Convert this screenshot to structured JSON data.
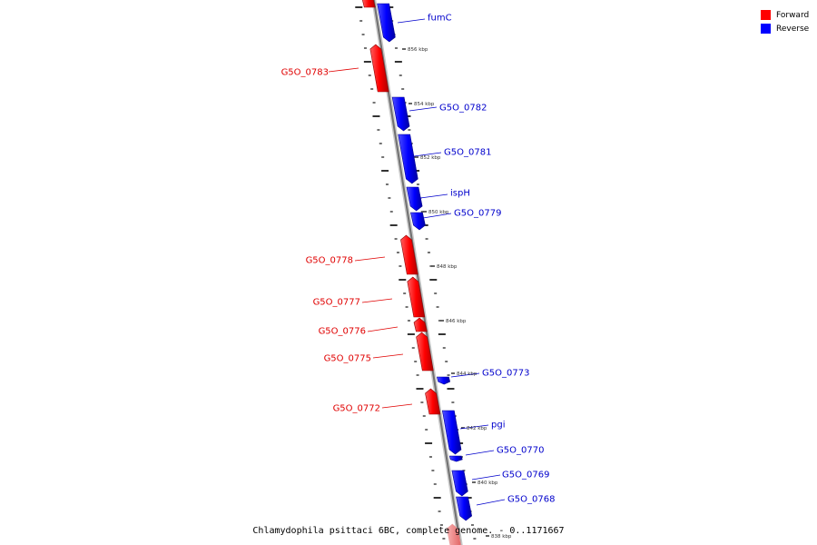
{
  "legend": {
    "forward": "Forward",
    "reverse": "Reverse",
    "forward_color": "#ff0000",
    "reverse_color": "#0000ff"
  },
  "caption": "Chlamydophila psittaci 6BC, complete genome. - 0..1171667",
  "genes": [
    {
      "name": "",
      "strand": "forward"
    },
    {
      "name": "fumC",
      "strand": "reverse"
    },
    {
      "name": "G5O_0783",
      "strand": "forward"
    },
    {
      "name": "G5O_0782",
      "strand": "reverse"
    },
    {
      "name": "G5O_0781",
      "strand": "reverse"
    },
    {
      "name": "ispH",
      "strand": "reverse"
    },
    {
      "name": "G5O_0779",
      "strand": "reverse"
    },
    {
      "name": "G5O_0778",
      "strand": "forward"
    },
    {
      "name": "G5O_0777",
      "strand": "forward"
    },
    {
      "name": "G5O_0776",
      "strand": "forward"
    },
    {
      "name": "G5O_0775",
      "strand": "forward"
    },
    {
      "name": "G5O_0773",
      "strand": "reverse"
    },
    {
      "name": "G5O_0772",
      "strand": "forward"
    },
    {
      "name": "pgi",
      "strand": "reverse"
    },
    {
      "name": "G5O_0770",
      "strand": "reverse"
    },
    {
      "name": "G5O_0769",
      "strand": "reverse"
    },
    {
      "name": "G5O_0768",
      "strand": "reverse"
    },
    {
      "name": "",
      "strand": "forward"
    }
  ],
  "scale_labels": [
    "856 kbp",
    "854 kbp",
    "852 kbp",
    "850 kbp",
    "848 kbp",
    "846 kbp",
    "844 kbp",
    "842 kbp",
    "840 kbp",
    "838 kbp"
  ]
}
